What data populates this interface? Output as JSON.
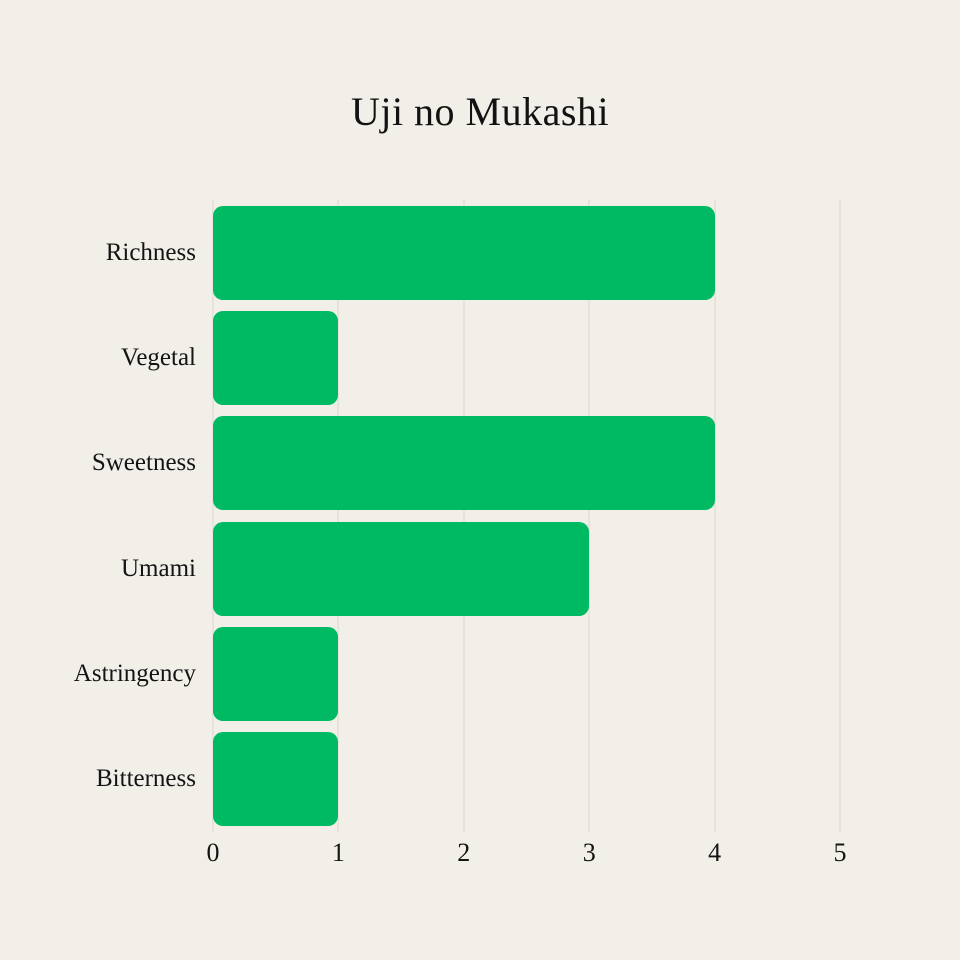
{
  "page": {
    "background_color": "#f2efe9",
    "text_color": "#141414"
  },
  "chart_data": {
    "type": "bar",
    "orientation": "horizontal",
    "title": "Uji no Mukashi",
    "categories": [
      "Richness",
      "Vegetal",
      "Sweetness",
      "Umami",
      "Astringency",
      "Bitterness"
    ],
    "values": [
      4,
      1,
      4,
      3,
      1,
      1
    ],
    "xlabel": "",
    "ylabel": "",
    "xlim": [
      0,
      5
    ],
    "x_ticks": [
      0,
      1,
      2,
      3,
      4,
      5
    ],
    "grid": "vertical gridlines on",
    "legend": "none",
    "bar_color": "#00ba63",
    "gridline_color": "#d9d6d0"
  }
}
